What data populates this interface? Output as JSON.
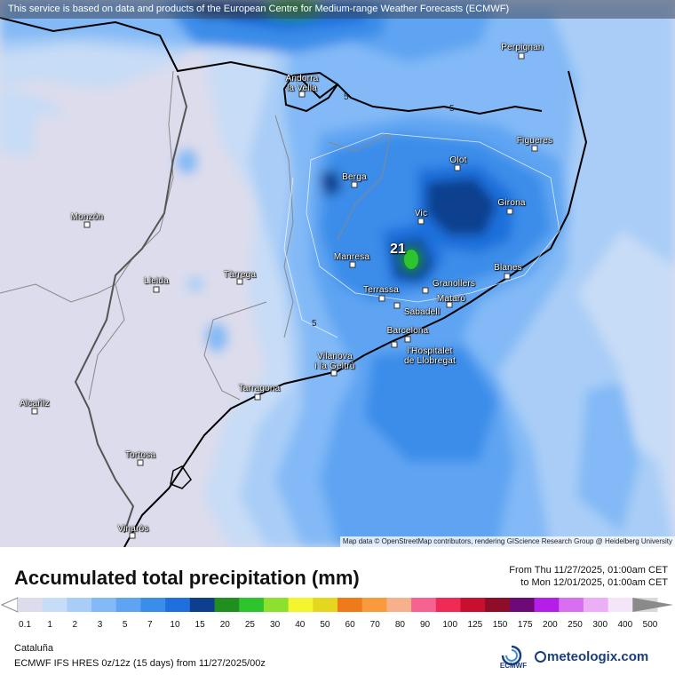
{
  "banner": "This service is based on data and products of the European Centre for Medium-range Weather Forecasts (ECMWF)",
  "attribution": "Map data © OpenStreetMap contributors, rendering GIScience Research Group @ Heidelberg University",
  "cities": [
    {
      "name": "Perpignan",
      "line2": ""
    },
    {
      "name": "Andorra",
      "line2": "la Vella"
    },
    {
      "name": "Figueres",
      "line2": ""
    },
    {
      "name": "Olot",
      "line2": ""
    },
    {
      "name": "Berga",
      "line2": ""
    },
    {
      "name": "Girona",
      "line2": ""
    },
    {
      "name": "Vic",
      "line2": ""
    },
    {
      "name": "Monzón",
      "line2": ""
    },
    {
      "name": "Manresa",
      "line2": ""
    },
    {
      "name": "Tàrrega",
      "line2": ""
    },
    {
      "name": "Lleida",
      "line2": ""
    },
    {
      "name": "Blanes",
      "line2": ""
    },
    {
      "name": "Terrassa",
      "line2": ""
    },
    {
      "name": "Granollers",
      "line2": ""
    },
    {
      "name": "Mataró",
      "line2": ""
    },
    {
      "name": "Sabadell",
      "line2": ""
    },
    {
      "name": "Barcelona",
      "line2": ""
    },
    {
      "name": "Vilanova",
      "line2": "i la Geltrú"
    },
    {
      "name": "l'Hospitalet",
      "line2": "de Llobregat"
    },
    {
      "name": "Tarragona",
      "line2": ""
    },
    {
      "name": "Alcañiz",
      "line2": ""
    },
    {
      "name": "Tortosa",
      "line2": ""
    },
    {
      "name": "Vinaròs",
      "line2": ""
    }
  ],
  "contour_labels": [
    "5",
    "5",
    "5"
  ],
  "peak_value": "21",
  "legend": {
    "title": "Accumulated total precipitation (mm)",
    "from": "From Thu 11/27/2025, 01:00am CET",
    "to": "to Mon 12/01/2025, 01:00am CET",
    "ticks": [
      "0.1",
      "1",
      "2",
      "3",
      "5",
      "7",
      "10",
      "15",
      "20",
      "25",
      "30",
      "40",
      "50",
      "60",
      "70",
      "80",
      "90",
      "100",
      "125",
      "150",
      "175",
      "200",
      "250",
      "300",
      "400",
      "500"
    ],
    "colors": [
      "#dcdcec",
      "#c7dcf6",
      "#a9cdf7",
      "#82b9f6",
      "#5ea4f2",
      "#3a8de9",
      "#1f6fdc",
      "#0d3f8e",
      "#1f8f1f",
      "#2ec42e",
      "#8ee02e",
      "#f5f52e",
      "#e5d71e",
      "#ee7a1c",
      "#f99b3c",
      "#f7b08c",
      "#f66390",
      "#ee2a55",
      "#c8102e",
      "#8e0e2a",
      "#6e0a78",
      "#b41ee8",
      "#d86ef0",
      "#ecaef5",
      "#f4e6f8",
      "#d9d9d9"
    ]
  },
  "region": "Cataluña",
  "model": "ECMWF IFS HRES 0z/12z (15 days) from 11/27/2025/00z",
  "logos": {
    "ecmwf": "ECMWF",
    "meteologix": "meteologix.com"
  }
}
